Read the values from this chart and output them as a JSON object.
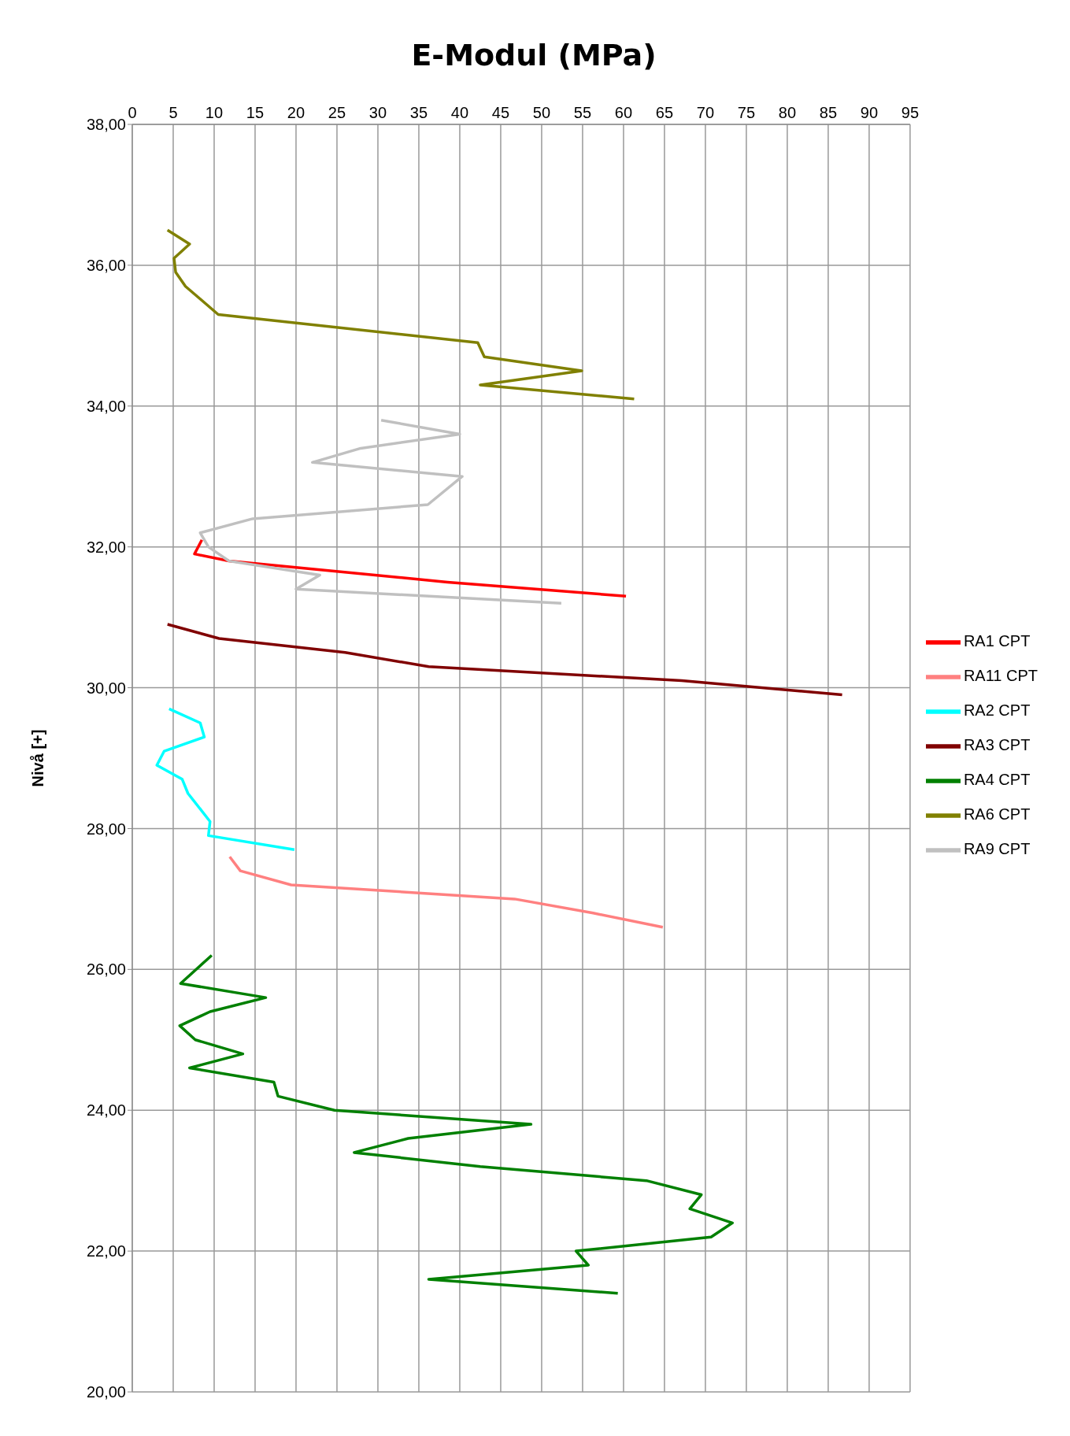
{
  "chart_data": {
    "type": "line",
    "title": "E-Modul (MPa)",
    "ylabel": "Nivå [+]",
    "xlim": [
      0,
      95
    ],
    "xticks": [
      0,
      5,
      10,
      15,
      20,
      25,
      30,
      35,
      40,
      45,
      50,
      55,
      60,
      65,
      70,
      75,
      80,
      85,
      90,
      95
    ],
    "ylim": [
      20,
      38
    ],
    "yticks": [
      {
        "value": 20,
        "label": "20,00"
      },
      {
        "value": 22,
        "label": "22,00"
      },
      {
        "value": 24,
        "label": "24,00"
      },
      {
        "value": 26,
        "label": "26,00"
      },
      {
        "value": 28,
        "label": "28,00"
      },
      {
        "value": 30,
        "label": "30,00"
      },
      {
        "value": 32,
        "label": "32,00"
      },
      {
        "value": 34,
        "label": "34,00"
      },
      {
        "value": 36,
        "label": "36,00"
      },
      {
        "value": 38,
        "label": "38,00"
      }
    ],
    "grid": true,
    "legend": "right",
    "marker": "none",
    "line_style": "solid",
    "series": [
      {
        "name": "RA1 CPT",
        "color": "#ff0000",
        "x": [
          8.5,
          7.6,
          11.8,
          38.5,
          60.3
        ],
        "values": [
          32.1,
          31.9,
          31.8,
          31.5,
          31.3
        ]
      },
      {
        "name": "RA11 CPT",
        "color": "#ff8080",
        "x": [
          11.9,
          13.2,
          19.4,
          46.7,
          56.3,
          64.8
        ],
        "values": [
          27.6,
          27.4,
          27.2,
          27.0,
          26.8,
          26.6
        ]
      },
      {
        "name": "RA2 CPT",
        "color": "#00ffff",
        "x": [
          4.5,
          8.3,
          8.8,
          3.9,
          3.0,
          6.1,
          6.8,
          9.5,
          9.3,
          19.8
        ],
        "values": [
          29.7,
          29.5,
          29.3,
          29.1,
          28.9,
          28.7,
          28.5,
          28.1,
          27.9,
          27.7
        ]
      },
      {
        "name": "RA3 CPT",
        "color": "#800000",
        "x": [
          4.3,
          10.6,
          26.0,
          36.2,
          67.1,
          86.7
        ],
        "values": [
          30.9,
          30.7,
          30.5,
          30.3,
          30.1,
          29.9
        ]
      },
      {
        "name": "RA4 CPT",
        "color": "#008000",
        "x": [
          9.7,
          5.9,
          16.3,
          9.5,
          5.8,
          7.7,
          13.5,
          7.0,
          17.3,
          17.8,
          24.7,
          48.7,
          33.7,
          27.1,
          42.5,
          62.8,
          69.5,
          68.1,
          73.3,
          70.7,
          54.2,
          55.7,
          36.2,
          59.3
        ],
        "values": [
          26.2,
          25.8,
          25.6,
          25.4,
          25.2,
          25.0,
          24.8,
          24.6,
          24.4,
          24.2,
          24.0,
          23.8,
          23.6,
          23.4,
          23.2,
          23.0,
          22.8,
          22.6,
          22.4,
          22.2,
          22.0,
          21.8,
          21.6,
          21.4
        ]
      },
      {
        "name": "RA6 CPT",
        "color": "#808000",
        "x": [
          4.3,
          7.0,
          5.1,
          5.3,
          6.5,
          10.5,
          42.2,
          43.0,
          54.9,
          42.5,
          61.3
        ],
        "values": [
          36.5,
          36.3,
          36.1,
          35.9,
          35.7,
          35.3,
          34.9,
          34.7,
          34.5,
          34.3,
          34.1
        ]
      },
      {
        "name": "RA9 CPT",
        "color": "#c0c0c0",
        "x": [
          30.4,
          40.0,
          27.9,
          22.0,
          40.3,
          36.1,
          14.7,
          8.3,
          9.3,
          11.8,
          22.9,
          20.0,
          52.4
        ],
        "values": [
          33.8,
          33.6,
          33.4,
          33.2,
          33.0,
          32.6,
          32.4,
          32.2,
          32.0,
          31.8,
          31.6,
          31.4,
          31.2
        ]
      }
    ]
  }
}
